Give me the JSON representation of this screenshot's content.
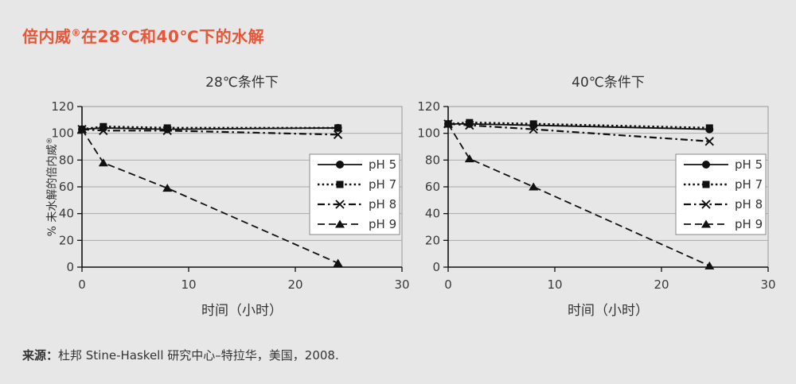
{
  "page": {
    "title": {
      "prefix": "倍内威",
      "sup": "®",
      "suffix": "在28℃和40℃下的水解"
    },
    "source": {
      "label": "来源：",
      "text": "杜邦 Stine-Haskell 研究中心–特拉华，美国，2008."
    }
  },
  "style": {
    "page_bg": "#e7e7e7",
    "title_color": "#e65638",
    "text": "#333333",
    "tick_text": "#3a3a3a",
    "axis": "#111111",
    "grid": "#aaaaaa",
    "plot_border": "#999999",
    "series_color": "#111111",
    "legend_bg": "#ffffff",
    "legend_border": "#888888"
  },
  "chart_data": [
    {
      "type": "line",
      "title": "28℃条件下",
      "xlabel": "时间（小时）",
      "ylabel": "% 未水解的倍内威",
      "ylabel_sup": "®",
      "xlim": [
        0,
        30
      ],
      "ylim": [
        0,
        120
      ],
      "xticks": [
        0,
        10,
        20,
        30
      ],
      "yticks": [
        0,
        20,
        40,
        60,
        80,
        100,
        120
      ],
      "grid": "horizontal",
      "legend_position": "right-middle",
      "x": [
        0,
        2,
        8,
        24
      ],
      "series": [
        {
          "name": "pH 5",
          "marker": "circle",
          "dash": "solid",
          "values": [
            103,
            104,
            103,
            104
          ]
        },
        {
          "name": "pH 7",
          "marker": "square",
          "dash": "dotted",
          "values": [
            103,
            105,
            104,
            104
          ]
        },
        {
          "name": "pH 8",
          "marker": "x",
          "dash": "dashdot",
          "values": [
            103,
            102,
            102,
            99
          ]
        },
        {
          "name": "pH 9",
          "marker": "triangle",
          "dash": "dashed",
          "values": [
            103,
            78,
            59,
            3
          ]
        }
      ]
    },
    {
      "type": "line",
      "title": "40℃条件下",
      "xlabel": "时间（小时）",
      "ylabel": "",
      "ylabel_sup": "",
      "xlim": [
        0,
        30
      ],
      "ylim": [
        0,
        120
      ],
      "xticks": [
        0,
        10,
        20,
        30
      ],
      "yticks": [
        0,
        20,
        40,
        60,
        80,
        100,
        120
      ],
      "grid": "horizontal",
      "legend_position": "right-middle",
      "x": [
        0,
        2,
        8,
        24.5
      ],
      "series": [
        {
          "name": "pH 5",
          "marker": "circle",
          "dash": "solid",
          "values": [
            107,
            107,
            106,
            103
          ]
        },
        {
          "name": "pH 7",
          "marker": "square",
          "dash": "dotted",
          "values": [
            107,
            108,
            107,
            104
          ]
        },
        {
          "name": "pH 8",
          "marker": "x",
          "dash": "dashdot",
          "values": [
            107,
            106,
            103,
            94
          ]
        },
        {
          "name": "pH 9",
          "marker": "triangle",
          "dash": "dashed",
          "values": [
            107,
            81,
            60,
            1
          ]
        }
      ]
    }
  ]
}
